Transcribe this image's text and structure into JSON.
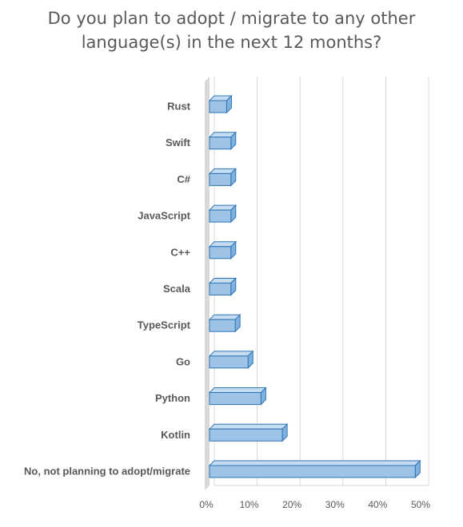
{
  "chart_data": {
    "type": "bar",
    "orientation": "horizontal",
    "style": "3d",
    "title_lines": [
      "Do you plan to adopt / migrate to any other",
      "language(s) in the next 12 months?"
    ],
    "categories": [
      "Rust",
      "Swift",
      "C#",
      "JavaScript",
      "C++",
      "Scala",
      "TypeScript",
      "Go",
      "Python",
      "Kotlin",
      "No, not planning to adopt/migrate"
    ],
    "values": [
      4,
      5,
      5,
      5,
      5,
      5,
      6,
      9,
      12,
      17,
      48
    ],
    "value_unit": "%",
    "xlim": [
      0,
      50
    ],
    "xticks": [
      "0%",
      "10%",
      "20%",
      "30%",
      "40%",
      "50%"
    ],
    "grid": true,
    "legend": "none",
    "colors": {
      "bar_fill": "#9dc3e6",
      "bar_top": "#c5dcf2",
      "bar_side": "#7fb0de",
      "bar_edge": "#2e75b6",
      "wall": "#d9d9d9",
      "grid": "#d9d9d9",
      "text": "#595959"
    }
  }
}
